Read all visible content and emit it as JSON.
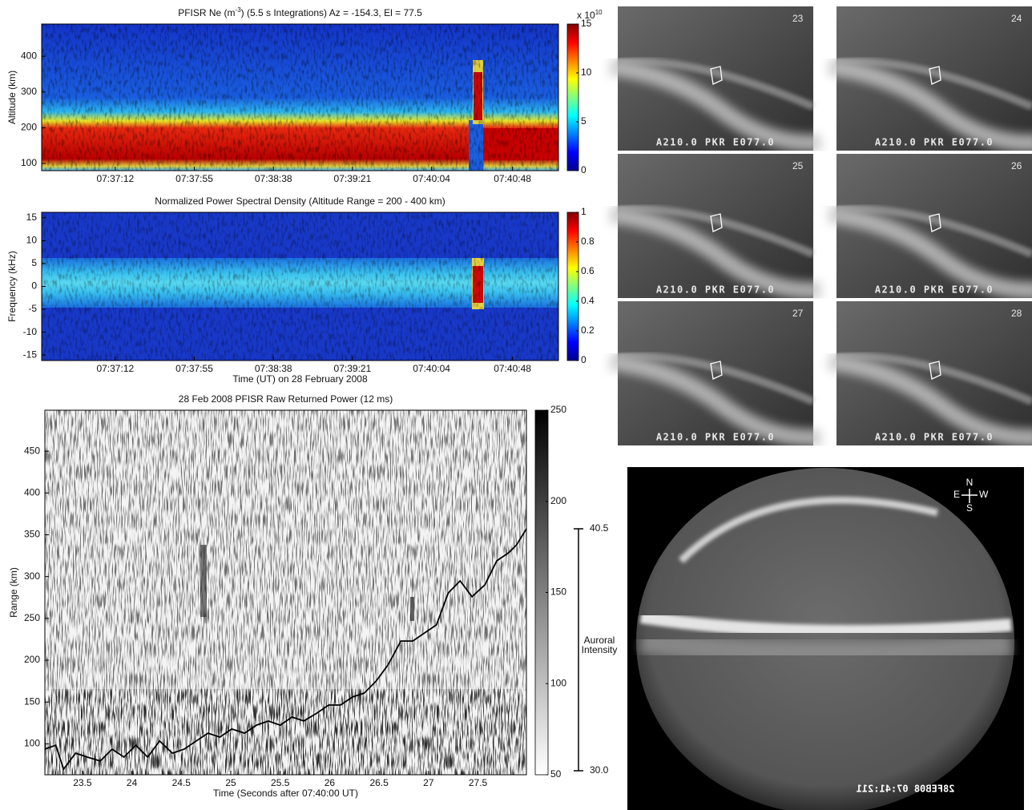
{
  "chart_data": [
    {
      "type": "heatmap",
      "title": "PFISR  Ne (m",
      "title_superscript": "-3",
      "title_suffix": ")  (5.5 s Integrations)  Az = -154.3, El = 77.5",
      "ylabel": "Altitude (km)",
      "ylim": [
        80,
        490
      ],
      "yticks": [
        100,
        200,
        300,
        400
      ],
      "xlim": [
        27392,
        27673
      ],
      "xticks": [
        {
          "value": 27432,
          "label": "07:37:12"
        },
        {
          "value": 27475,
          "label": "07:37:55"
        },
        {
          "value": 27518,
          "label": "07:38:38"
        },
        {
          "value": 27561,
          "label": "07:39:21"
        },
        {
          "value": 27604,
          "label": "07:40:04"
        },
        {
          "value": 27648,
          "label": "07:40:48"
        }
      ],
      "colormap": "jet",
      "clim": [
        0,
        15
      ],
      "cticks": [
        0,
        5,
        10,
        15
      ],
      "cscale": "x 10",
      "cscale_superscript": "10"
    },
    {
      "type": "heatmap",
      "title": "Normalized Power Spectral Density  (Altitude Range = 200 - 400 km)",
      "ylabel": "Frequency (kHz)",
      "ylim": [
        -16.2,
        16.2
      ],
      "yticks": [
        -15,
        -10,
        -5,
        0,
        5,
        10,
        15
      ],
      "xlabel": "Time (UT) on 28 February 2008",
      "xlim": [
        27392,
        27673
      ],
      "xticks": [
        {
          "value": 27432,
          "label": "07:37:12"
        },
        {
          "value": 27475,
          "label": "07:37:55"
        },
        {
          "value": 27518,
          "label": "07:38:38"
        },
        {
          "value": 27561,
          "label": "07:39:21"
        },
        {
          "value": 27604,
          "label": "07:40:04"
        },
        {
          "value": 27648,
          "label": "07:40:48"
        }
      ],
      "colormap": "jet",
      "clim": [
        0,
        1
      ],
      "cticks": [
        0,
        0.2,
        0.4,
        0.6,
        0.8,
        1
      ]
    },
    {
      "type": "heatmap",
      "title": "28 Feb 2008 PFISR Raw Returned Power (12 ms)",
      "ylabel": "Range (km)",
      "ylim": [
        63,
        499
      ],
      "yticks": [
        100,
        150,
        200,
        250,
        300,
        350,
        400,
        450
      ],
      "xlabel": "Time (Seconds after 07:40:00 UT)",
      "xlim": [
        23.12,
        27.99
      ],
      "xticks": [
        23.5,
        24,
        24.5,
        25,
        25.5,
        26,
        26.5,
        27,
        27.5
      ],
      "colormap": "gray",
      "clim": [
        50,
        250
      ],
      "cticks": [
        50,
        100,
        150,
        200,
        250
      ],
      "y2lim": [
        30,
        40.5
      ],
      "y2ticks": [
        {
          "value": 30,
          "label": "30.0"
        },
        40.5
      ],
      "y2label_lines": [
        "Auroral",
        "Intensity"
      ],
      "x": [
        23.12,
        23.23,
        23.31,
        23.43,
        23.55,
        23.68,
        23.8,
        23.92,
        24.04,
        24.16,
        24.28,
        24.41,
        24.53,
        24.65,
        24.77,
        24.89,
        25.01,
        25.14,
        25.26,
        25.38,
        25.5,
        25.62,
        25.74,
        25.87,
        25.99,
        26.11,
        26.23,
        26.35,
        26.47,
        26.59,
        26.72,
        26.84,
        26.96,
        27.08,
        27.2,
        27.32,
        27.44,
        27.57,
        27.69,
        27.81,
        27.89,
        27.99
      ],
      "series": [
        {
          "color": "#000000",
          "axis": "y2",
          "values": [
            30.94,
            31.11,
            30.07,
            30.76,
            30.59,
            30.42,
            30.94,
            30.59,
            31.11,
            30.59,
            31.29,
            30.76,
            30.94,
            31.29,
            31.63,
            31.46,
            31.81,
            31.63,
            31.98,
            32.16,
            31.98,
            32.33,
            32.16,
            32.5,
            32.85,
            32.85,
            33.2,
            33.37,
            33.89,
            34.59,
            35.63,
            35.63,
            35.98,
            36.33,
            37.72,
            38.24,
            37.55,
            38.07,
            39.11,
            39.46,
            39.8,
            40.5
          ]
        }
      ]
    }
  ],
  "images": {
    "frames": [
      {
        "number": "23",
        "caption": "A210.0 PKR E077.0"
      },
      {
        "number": "24",
        "caption": "A210.0 PKR E077.0"
      },
      {
        "number": "25",
        "caption": "A210.0 PKR E077.0"
      },
      {
        "number": "26",
        "caption": "A210.0 PKR E077.0"
      },
      {
        "number": "27",
        "caption": "A210.0 PKR E077.0"
      },
      {
        "number": "28",
        "caption": "A210.0 PKR E077.0"
      }
    ],
    "allsky": {
      "north": "N",
      "east": "E",
      "west": "W",
      "south": "S",
      "stamp": "28FEB08 07:41:211"
    }
  }
}
